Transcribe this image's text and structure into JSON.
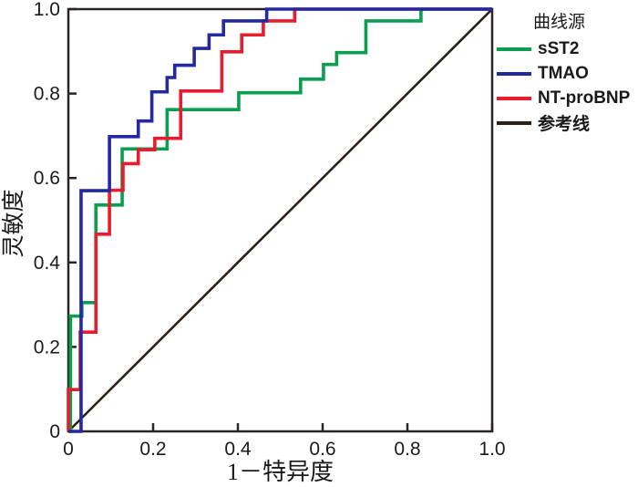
{
  "chart_data": {
    "type": "line",
    "variant": "roc-step-curves",
    "title": "",
    "xlabel": "1－特异度",
    "ylabel": "灵敏度",
    "legend_title": "曲线源",
    "legend_position": "top-right-outside",
    "grid": false,
    "xlim": [
      0,
      1
    ],
    "ylim": [
      0,
      1
    ],
    "x_tick_labels": [
      "0",
      "0.2",
      "0.4",
      "0.6",
      "0.8",
      "1.0"
    ],
    "y_tick_labels": [
      "0",
      "0.2",
      "0.4",
      "0.6",
      "0.8",
      "1.0"
    ],
    "x_tick_values": [
      0,
      0.2,
      0.4,
      0.6,
      0.8,
      1.0
    ],
    "y_tick_values": [
      0,
      0.2,
      0.4,
      0.6,
      0.8,
      1.0
    ],
    "axis_color": "#2b2422",
    "text_color": "#1a1a1a",
    "draw_order": [
      3,
      0,
      2,
      1
    ],
    "series": [
      {
        "name": "sST2",
        "color": "#0a9e4e",
        "line_width": 3.6,
        "points": [
          [
            0,
            0
          ],
          [
            0.005,
            0
          ],
          [
            0.005,
            0.273
          ],
          [
            0.032,
            0.273
          ],
          [
            0.032,
            0.305
          ],
          [
            0.065,
            0.305
          ],
          [
            0.065,
            0.536
          ],
          [
            0.127,
            0.536
          ],
          [
            0.127,
            0.669
          ],
          [
            0.233,
            0.669
          ],
          [
            0.233,
            0.762
          ],
          [
            0.402,
            0.762
          ],
          [
            0.402,
            0.802
          ],
          [
            0.548,
            0.802
          ],
          [
            0.548,
            0.834
          ],
          [
            0.602,
            0.834
          ],
          [
            0.602,
            0.869
          ],
          [
            0.633,
            0.869
          ],
          [
            0.633,
            0.897
          ],
          [
            0.702,
            0.897
          ],
          [
            0.702,
            0.972
          ],
          [
            0.832,
            0.972
          ],
          [
            0.832,
            1
          ],
          [
            1,
            1
          ]
        ]
      },
      {
        "name": "TMAO",
        "color": "#2329a1",
        "line_width": 3.6,
        "points": [
          [
            0,
            0
          ],
          [
            0.03,
            0
          ],
          [
            0.03,
            0.57
          ],
          [
            0.097,
            0.57
          ],
          [
            0.097,
            0.698
          ],
          [
            0.165,
            0.698
          ],
          [
            0.165,
            0.735
          ],
          [
            0.197,
            0.735
          ],
          [
            0.197,
            0.804
          ],
          [
            0.233,
            0.804
          ],
          [
            0.233,
            0.838
          ],
          [
            0.251,
            0.838
          ],
          [
            0.251,
            0.867
          ],
          [
            0.297,
            0.867
          ],
          [
            0.297,
            0.907
          ],
          [
            0.332,
            0.907
          ],
          [
            0.332,
            0.939
          ],
          [
            0.366,
            0.939
          ],
          [
            0.366,
            0.972
          ],
          [
            0.468,
            0.972
          ],
          [
            0.468,
            1
          ],
          [
            1,
            1
          ]
        ]
      },
      {
        "name": "NT-proBNP",
        "color": "#ea1b2d",
        "line_width": 3.6,
        "points": [
          [
            0,
            0
          ],
          [
            0,
            0.099
          ],
          [
            0.028,
            0.099
          ],
          [
            0.028,
            0.235
          ],
          [
            0.065,
            0.235
          ],
          [
            0.065,
            0.467
          ],
          [
            0.097,
            0.467
          ],
          [
            0.097,
            0.571
          ],
          [
            0.129,
            0.571
          ],
          [
            0.129,
            0.634
          ],
          [
            0.165,
            0.634
          ],
          [
            0.165,
            0.667
          ],
          [
            0.204,
            0.667
          ],
          [
            0.204,
            0.694
          ],
          [
            0.265,
            0.694
          ],
          [
            0.265,
            0.806
          ],
          [
            0.362,
            0.806
          ],
          [
            0.362,
            0.899
          ],
          [
            0.409,
            0.899
          ],
          [
            0.409,
            0.939
          ],
          [
            0.46,
            0.939
          ],
          [
            0.46,
            0.972
          ],
          [
            0.534,
            0.972
          ],
          [
            0.534,
            1
          ],
          [
            1,
            1
          ]
        ]
      },
      {
        "name": "参考线",
        "color": "#2b2018",
        "line_width": 2.6,
        "points": [
          [
            0,
            0
          ],
          [
            1,
            1
          ]
        ]
      }
    ]
  }
}
